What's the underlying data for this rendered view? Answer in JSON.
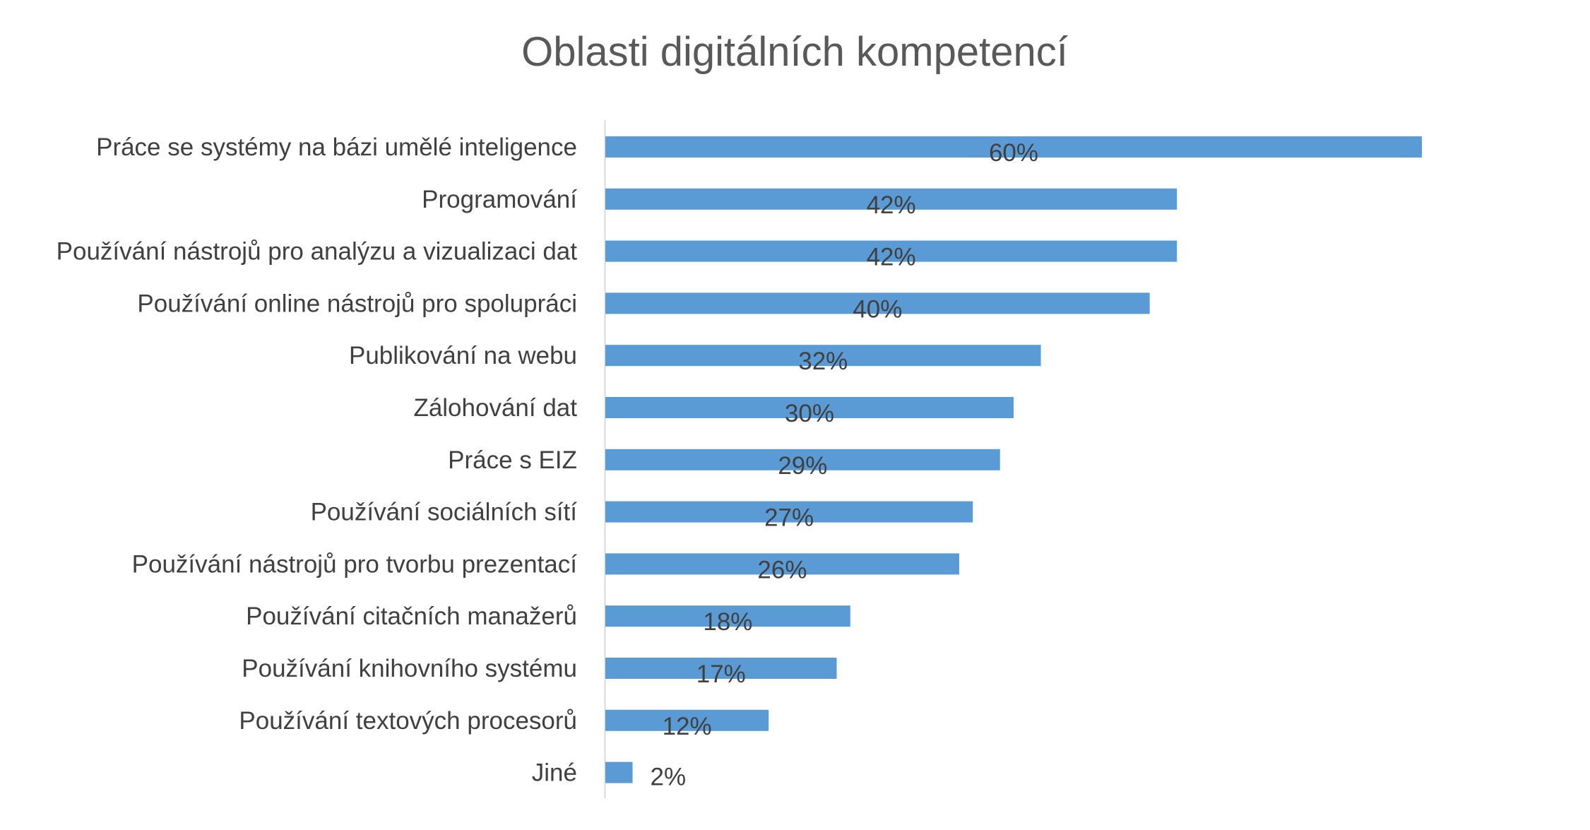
{
  "chart_data": {
    "type": "bar",
    "orientation": "horizontal",
    "title": "Oblasti digitálních kompetencí",
    "categories": [
      "Práce se systémy na bázi umělé inteligence",
      "Programování",
      "Používání nástrojů pro analýzu a vizualizaci dat",
      "Používání online nástrojů pro spolupráci",
      "Publikování na webu",
      "Zálohování dat",
      "Práce s EIZ",
      "Používání sociálních sítí",
      "Používání nástrojů pro tvorbu prezentací",
      "Používání citačních manažerů",
      "Používání knihovního systému",
      "Používání textových procesorů",
      "Jiné"
    ],
    "values": [
      60,
      42,
      42,
      40,
      32,
      30,
      29,
      27,
      26,
      18,
      17,
      12,
      2
    ],
    "value_labels": [
      "60%",
      "42%",
      "42%",
      "40%",
      "32%",
      "30%",
      "29%",
      "27%",
      "26%",
      "18%",
      "17%",
      "12%",
      "2%"
    ],
    "value_unit": "%",
    "xlim": [
      0,
      60
    ],
    "grid": false,
    "legend": "none",
    "colors": {
      "bar": "#5b9bd5",
      "axis": "#d9d9d9",
      "text": "#404040",
      "title": "#595959"
    }
  }
}
